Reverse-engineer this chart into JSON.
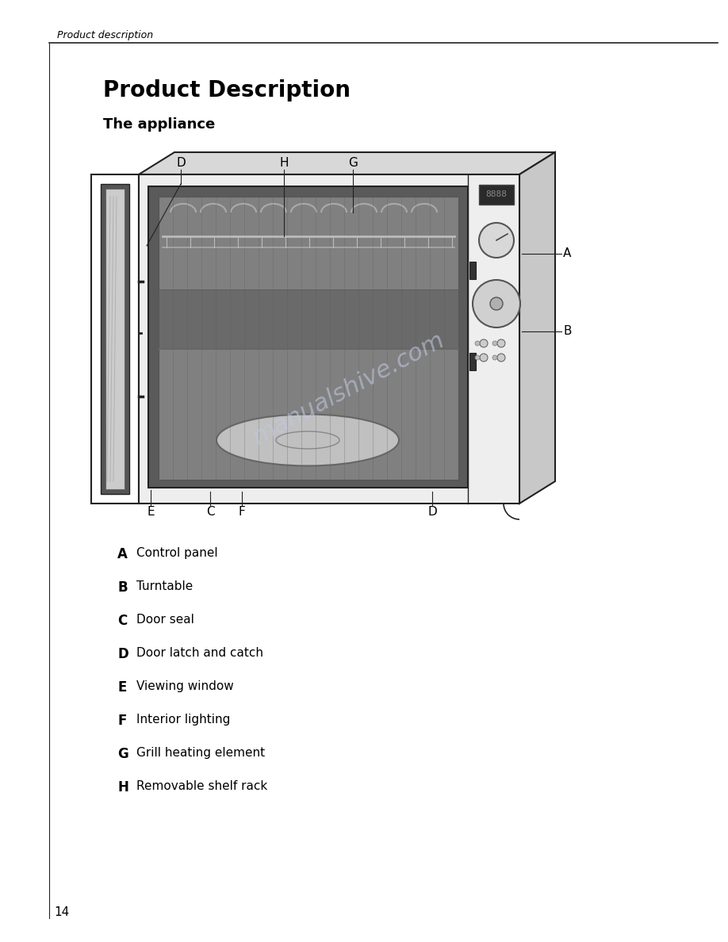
{
  "page_header": "Product description",
  "title": "Product Description",
  "subtitle": "The appliance",
  "page_number": "14",
  "labels": {
    "A": "Control panel",
    "B": "Turntable",
    "C": "Door seal",
    "D": "Door latch and catch",
    "E": "Viewing window",
    "F": "Interior lighting",
    "G": "Grill heating element",
    "H": "Removable shelf rack"
  },
  "label_order": [
    "A",
    "B",
    "C",
    "D",
    "E",
    "F",
    "G",
    "H"
  ],
  "bg_color": "#ffffff",
  "text_color": "#000000",
  "line_color": "#222222",
  "cavity_color": "#5a5a5a",
  "inner_wall_color": "#888888",
  "door_color": "#e8e8e8",
  "body_color": "#f0f0f0",
  "ctrl_panel_color": "#e0e0e0",
  "watermark_color": "#c0c8e0",
  "header_text_size": 9,
  "title_text_size": 20,
  "subtitle_text_size": 13,
  "label_text_size": 11,
  "legend_letter_size": 12,
  "legend_desc_size": 11,
  "page_num_size": 11
}
